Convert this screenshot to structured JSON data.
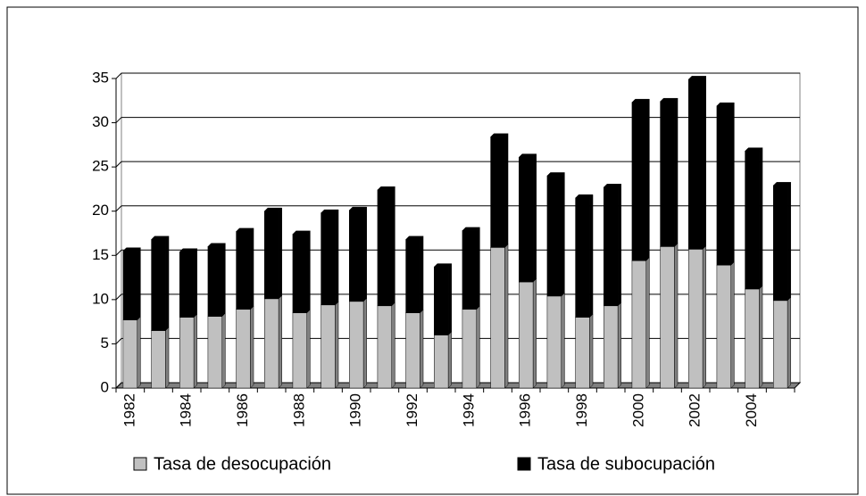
{
  "chart_data": {
    "type": "stacked-bar",
    "categories": [
      "1982",
      null,
      "1984",
      null,
      "1986",
      null,
      "1988",
      null,
      "1990",
      null,
      "1992",
      null,
      "1994",
      null,
      "1996",
      null,
      "1998",
      null,
      "2000",
      null,
      "2002",
      null,
      "2004",
      null
    ],
    "series": [
      {
        "name": "Tasa de desocupación",
        "color": "#c0c0c0",
        "values": [
          7.7,
          6.5,
          8.0,
          8.1,
          8.9,
          10.1,
          8.5,
          9.4,
          9.8,
          9.3,
          8.5,
          6.0,
          8.9,
          15.9,
          12.0,
          10.4,
          8.0,
          9.3,
          14.4,
          16.0,
          15.7,
          13.9,
          11.2,
          9.9
        ]
      },
      {
        "name": "Tasa de subocupación",
        "color": "#000000",
        "values": [
          7.8,
          10.3,
          7.4,
          7.9,
          8.8,
          9.9,
          8.9,
          10.4,
          10.3,
          13.1,
          8.3,
          7.7,
          8.9,
          12.5,
          14.1,
          13.6,
          13.5,
          13.4,
          17.9,
          16.4,
          19.2,
          18.0,
          15.6,
          13.0
        ]
      }
    ],
    "ylim": [
      0,
      35
    ],
    "yticks": [
      0,
      5,
      10,
      15,
      20,
      25,
      30,
      35
    ],
    "grid": true
  }
}
